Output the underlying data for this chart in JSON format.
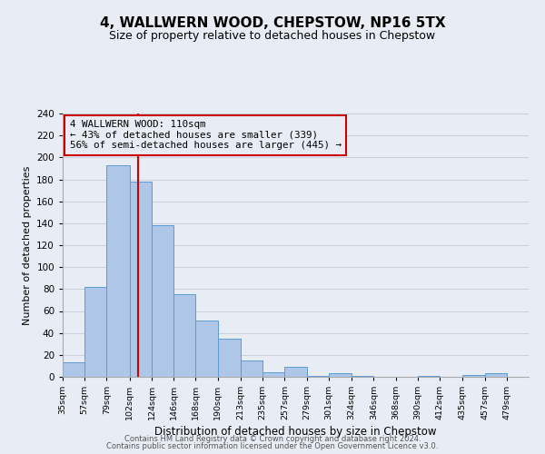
{
  "title": "4, WALLWERN WOOD, CHEPSTOW, NP16 5TX",
  "subtitle": "Size of property relative to detached houses in Chepstow",
  "xlabel": "Distribution of detached houses by size in Chepstow",
  "ylabel": "Number of detached properties",
  "bin_labels": [
    "35sqm",
    "57sqm",
    "79sqm",
    "102sqm",
    "124sqm",
    "146sqm",
    "168sqm",
    "190sqm",
    "213sqm",
    "235sqm",
    "257sqm",
    "279sqm",
    "301sqm",
    "324sqm",
    "346sqm",
    "368sqm",
    "390sqm",
    "412sqm",
    "435sqm",
    "457sqm",
    "479sqm"
  ],
  "bar_values": [
    13,
    82,
    193,
    178,
    138,
    75,
    51,
    35,
    15,
    4,
    9,
    1,
    3,
    1,
    0,
    0,
    1,
    0,
    2,
    3
  ],
  "bin_edges": [
    35,
    57,
    79,
    102,
    124,
    146,
    168,
    190,
    213,
    235,
    257,
    279,
    301,
    324,
    346,
    368,
    390,
    412,
    435,
    457,
    479
  ],
  "bar_color": "#aec6e8",
  "bar_edgecolor": "#5b9bd5",
  "vline_x": 110,
  "vline_color": "#cc0000",
  "annotation_text": "4 WALLWERN WOOD: 110sqm\n← 43% of detached houses are smaller (339)\n56% of semi-detached houses are larger (445) →",
  "annotation_box_edgecolor": "#cc0000",
  "ylim": [
    0,
    240
  ],
  "yticks": [
    0,
    20,
    40,
    60,
    80,
    100,
    120,
    140,
    160,
    180,
    200,
    220,
    240
  ],
  "grid_color": "#c8d0de",
  "bg_color": "#e8edf5",
  "footer_line1": "Contains HM Land Registry data © Crown copyright and database right 2024.",
  "footer_line2": "Contains public sector information licensed under the Open Government Licence v3.0."
}
